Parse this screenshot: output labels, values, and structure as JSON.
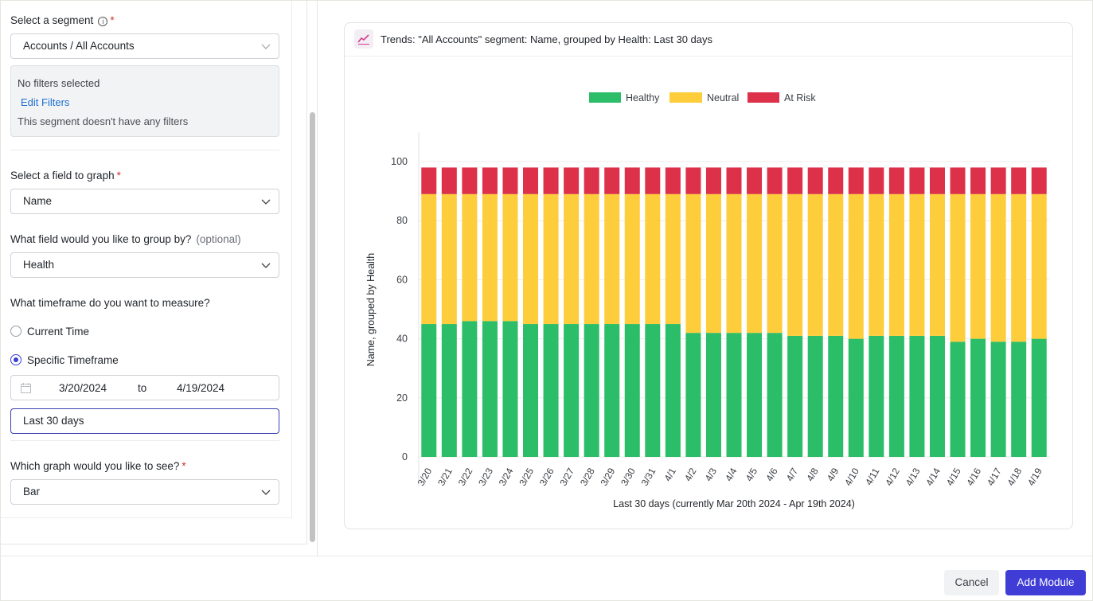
{
  "form": {
    "segment_label": "Select a segment",
    "required_mark": "*",
    "info_glyph": "i",
    "segment_value": "Accounts / All Accounts",
    "filters": {
      "none_text": "No filters selected",
      "edit_link": "Edit Filters",
      "empty_text": "This segment doesn't have any filters"
    },
    "field_label": "Select a field to graph",
    "field_value": "Name",
    "group_label": "What field would you like to group by?",
    "group_optional": "(optional)",
    "group_value": "Health",
    "timeframe_label": "What timeframe do you want to measure?",
    "timeframe_options": [
      {
        "label": "Current Time",
        "selected": false
      },
      {
        "label": "Specific Timeframe",
        "selected": true
      }
    ],
    "date_from": "3/20/2024",
    "date_to_word": "to",
    "date_to": "4/19/2024",
    "range_text": "Last 30 days",
    "graph_label": "Which graph would you like to see?",
    "graph_value": "Bar"
  },
  "card": {
    "title": "Trends: \"All Accounts\" segment: Name, grouped by Health: Last 30 days",
    "icon": "trend-line-icon"
  },
  "chart_data": {
    "type": "bar",
    "stacked": true,
    "xlabel": "Last 30 days (currently Mar 20th 2024 - Apr 19th 2024)",
    "ylabel": "Name, grouped by Health",
    "ylim": [
      0,
      100
    ],
    "yticks": [
      0,
      20,
      40,
      60,
      80,
      100
    ],
    "grid": true,
    "legend_position": "top-center",
    "categories": [
      "3/20",
      "3/21",
      "3/22",
      "3/23",
      "3/24",
      "3/25",
      "3/26",
      "3/27",
      "3/28",
      "3/29",
      "3/30",
      "3/31",
      "4/1",
      "4/2",
      "4/3",
      "4/4",
      "4/5",
      "4/6",
      "4/7",
      "4/8",
      "4/9",
      "4/10",
      "4/11",
      "4/12",
      "4/13",
      "4/14",
      "4/15",
      "4/16",
      "4/17",
      "4/18",
      "4/19"
    ],
    "series": [
      {
        "name": "Healthy",
        "color": "#2bbd67",
        "values": [
          45,
          45,
          46,
          46,
          46,
          45,
          45,
          45,
          45,
          45,
          45,
          45,
          45,
          42,
          42,
          42,
          42,
          42,
          41,
          41,
          41,
          40,
          41,
          41,
          41,
          41,
          39,
          40,
          39,
          39,
          40
        ]
      },
      {
        "name": "Neutral",
        "color": "#fdcd3b",
        "values": [
          44,
          44,
          43,
          43,
          43,
          44,
          44,
          44,
          44,
          44,
          44,
          44,
          44,
          47,
          47,
          47,
          47,
          47,
          48,
          48,
          48,
          49,
          48,
          48,
          48,
          48,
          50,
          49,
          50,
          50,
          49
        ]
      },
      {
        "name": "At Risk",
        "color": "#dd3049",
        "values": [
          9,
          9,
          9,
          9,
          9,
          9,
          9,
          9,
          9,
          9,
          9,
          9,
          9,
          9,
          9,
          9,
          9,
          9,
          9,
          9,
          9,
          9,
          9,
          9,
          9,
          9,
          9,
          9,
          9,
          9,
          9
        ]
      }
    ]
  },
  "footer": {
    "cancel_label": "Cancel",
    "add_label": "Add Module"
  }
}
